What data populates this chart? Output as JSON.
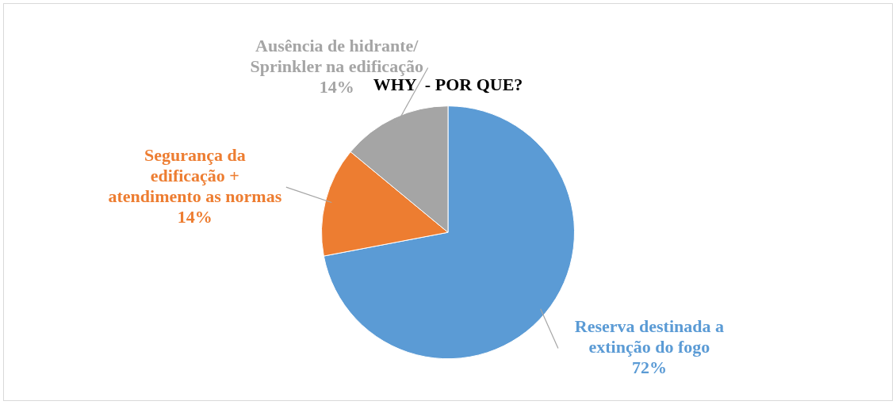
{
  "chart_data": {
    "type": "pie",
    "title": "WHY  - POR QUE?",
    "categories": [
      "Reserva destinada a extinção do fogo",
      "Segurança da edificação + atendimento as normas",
      "Ausência de hidrante/ Sprinkler na edificação"
    ],
    "values": [
      72,
      14,
      14
    ],
    "colors": [
      "#5b9bd5",
      "#ed7d31",
      "#a5a5a5"
    ],
    "value_labels": [
      "72%",
      "14%",
      "14%"
    ],
    "legend": false
  }
}
